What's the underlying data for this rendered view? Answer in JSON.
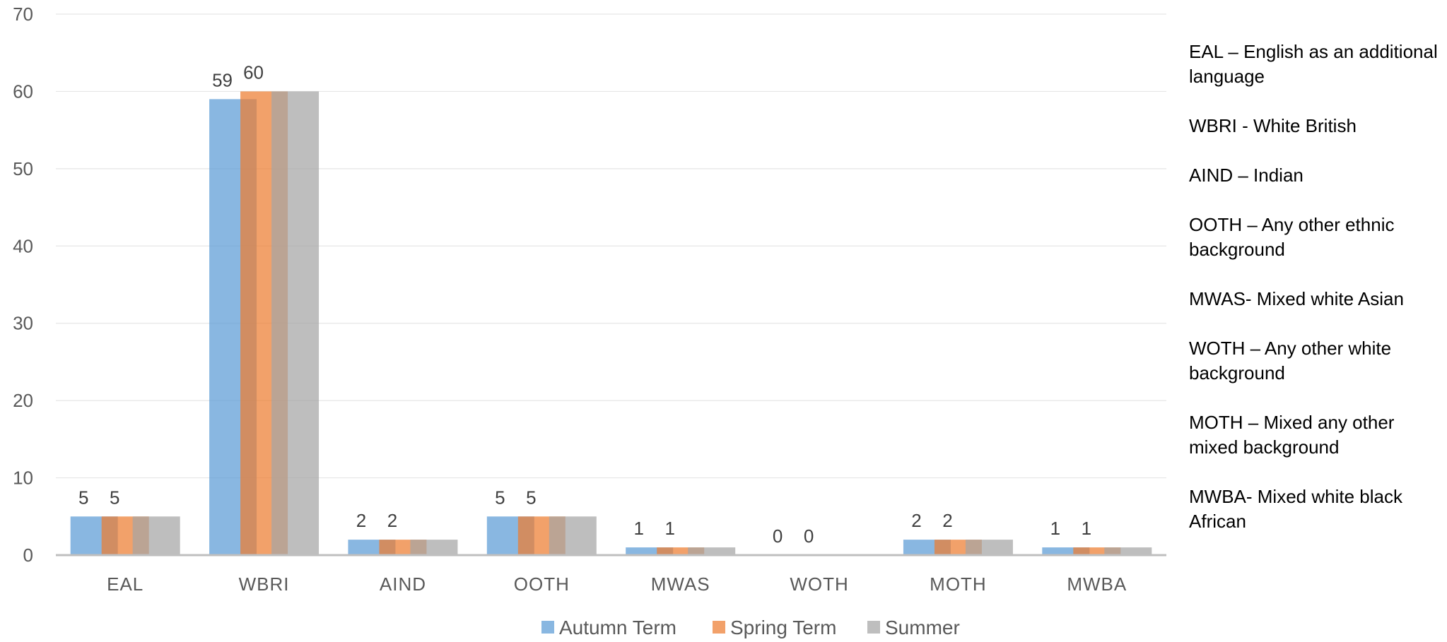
{
  "chart_data": {
    "type": "bar",
    "categories": [
      "EAL",
      "WBRI",
      "AIND",
      "OOTH",
      "MWAS",
      "WOTH",
      "MOTH",
      "MWBA"
    ],
    "series": [
      {
        "name": "Autumn Term",
        "values": [
          5,
          59,
          2,
          5,
          1,
          0,
          2,
          1
        ],
        "color": "#5B9BD5"
      },
      {
        "name": "Spring Term",
        "values": [
          5,
          60,
          2,
          5,
          1,
          0,
          2,
          1
        ],
        "color": "#ED7D31"
      },
      {
        "name": "Summer",
        "values": [
          5,
          60,
          2,
          5,
          1,
          0,
          2,
          1
        ],
        "color": "#A5A5A5"
      }
    ],
    "data_labels": {
      "Autumn Term": [
        "5",
        "59",
        "2",
        "5",
        "1",
        "0",
        "2",
        "1"
      ],
      "Spring Term": [
        "5",
        "60",
        "2",
        "5",
        "1",
        "0",
        "2",
        "1"
      ]
    },
    "ylim": [
      0,
      70
    ],
    "yticks": [
      "0",
      "10",
      "20",
      "30",
      "40",
      "50",
      "60",
      "70"
    ],
    "grid": true,
    "legend_position": "bottom"
  },
  "notes": [
    "EAL – English as an additional language",
    "WBRI -  White British",
    "AIND – Indian",
    "OOTH – Any other ethnic background",
    "MWAS- Mixed white Asian",
    "WOTH –  Any other white background",
    "MOTH – Mixed any other mixed background",
    "MWBA- Mixed white black African"
  ]
}
